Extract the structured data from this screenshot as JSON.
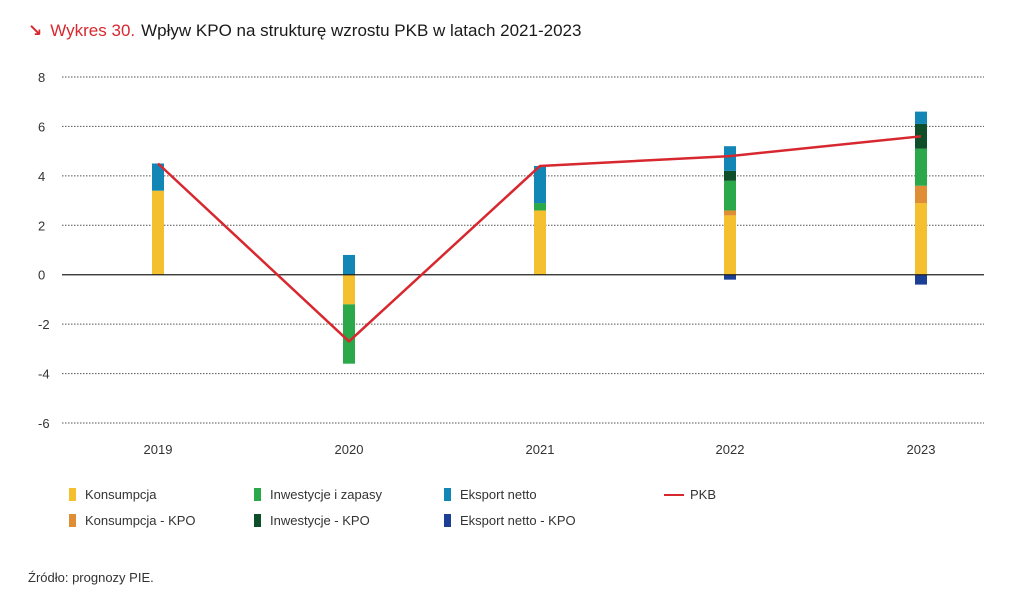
{
  "header": {
    "arrow_icon": "↘",
    "label": "Wykres 30.",
    "title": "Wpływ KPO na strukturę wzrostu PKB w latach 2021-2023"
  },
  "source": "Źródło: prognozy PIE.",
  "colors": {
    "Konsumpcja": "#f4c02f",
    "Inwestycje i zapasy": "#2aa84a",
    "Eksport netto": "#1287b6",
    "Konsumpcja - KPO": "#e08e35",
    "Inwestycje - KPO": "#0e4e28",
    "Eksport netto - KPO": "#1a3f94",
    "PKB": "#d7282f"
  },
  "legend": [
    {
      "name": "Konsumpcja",
      "kind": "bar"
    },
    {
      "name": "Inwestycje i zapasy",
      "kind": "bar"
    },
    {
      "name": "Eksport netto",
      "kind": "bar"
    },
    {
      "name": "PKB",
      "kind": "line"
    },
    {
      "name": "Konsumpcja - KPO",
      "kind": "bar"
    },
    {
      "name": "Inwestycje - KPO",
      "kind": "bar"
    },
    {
      "name": "Eksport netto - KPO",
      "kind": "bar"
    }
  ],
  "chart_data": {
    "type": "bar",
    "stacked": true,
    "categories": [
      "2019",
      "2020",
      "2021",
      "2022",
      "2023"
    ],
    "ylim": [
      -6,
      8
    ],
    "yticks": [
      8,
      6,
      4,
      2,
      0,
      -2,
      -4,
      -6
    ],
    "grid": true,
    "legend_position": "bottom",
    "series": [
      {
        "name": "Konsumpcja",
        "values": [
          3.4,
          -1.2,
          2.6,
          2.4,
          2.9
        ]
      },
      {
        "name": "Konsumpcja - KPO",
        "values": [
          0,
          0,
          0,
          0.2,
          0.7
        ]
      },
      {
        "name": "Inwestycje i zapasy",
        "values": [
          0,
          -2.4,
          0.3,
          1.2,
          1.5
        ]
      },
      {
        "name": "Inwestycje - KPO",
        "values": [
          0,
          0,
          0,
          0.4,
          1.0
        ]
      },
      {
        "name": "Eksport netto",
        "values": [
          1.1,
          0.8,
          1.5,
          1.0,
          0.5
        ]
      },
      {
        "name": "Eksport netto - KPO",
        "values": [
          0,
          0,
          0,
          -0.2,
          -0.4
        ]
      }
    ],
    "line": {
      "name": "PKB",
      "values": [
        4.5,
        -2.7,
        4.4,
        4.8,
        5.6
      ]
    }
  }
}
